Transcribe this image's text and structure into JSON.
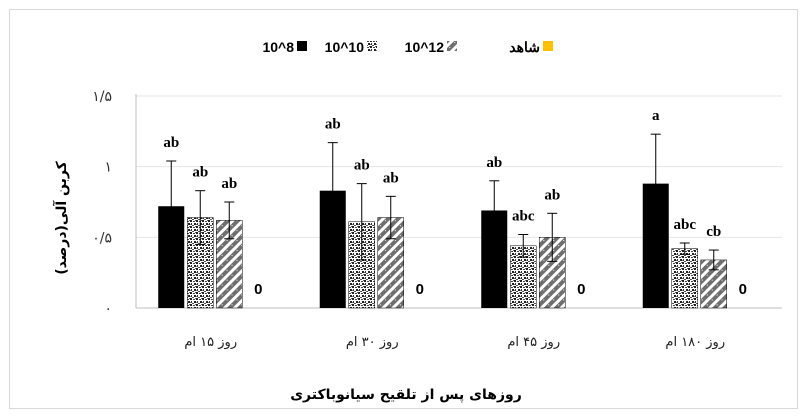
{
  "chart_data": {
    "type": "bar",
    "xlabel": "روزهای پس از تلقیح سیانوباکتری",
    "ylabel": "کربن آلی(درصد)",
    "ylim": [
      0,
      1.5
    ],
    "yticks": [
      "۰",
      "۰/۵",
      "۱",
      "۱/۵"
    ],
    "ytick_values": [
      0,
      0.5,
      1,
      1.5
    ],
    "categories": [
      "روز ۱۵ ام",
      "روز ۳۰ ام",
      "روز ۴۵ ام",
      "روز ۱۸۰ ام"
    ],
    "series": [
      {
        "name": "10^8",
        "color": "#000000",
        "pattern": "solid",
        "values": [
          0.72,
          0.83,
          0.69,
          0.88
        ],
        "errors": [
          0.32,
          0.34,
          0.21,
          0.35
        ],
        "labels": [
          "ab",
          "ab",
          "ab",
          "a"
        ]
      },
      {
        "name": "10^10",
        "color": "#7f7f7f",
        "pattern": "speckle",
        "values": [
          0.64,
          0.61,
          0.44,
          0.42
        ],
        "errors": [
          0.19,
          0.27,
          0.08,
          0.04
        ],
        "labels": [
          "ab",
          "ab",
          "abc",
          "abc"
        ]
      },
      {
        "name": "10^12",
        "color": "#7f7f7f",
        "pattern": "diagonal",
        "values": [
          0.62,
          0.64,
          0.5,
          0.34
        ],
        "errors": [
          0.13,
          0.15,
          0.17,
          0.07
        ],
        "labels": [
          "ab",
          "ab",
          "ab",
          "cb"
        ]
      },
      {
        "name": "شاهد",
        "color": "#ffc000",
        "pattern": "solid",
        "values": [
          0,
          0,
          0,
          0
        ],
        "errors": [
          0,
          0,
          0,
          0
        ],
        "labels": [
          "0",
          "0",
          "0",
          "0"
        ]
      }
    ],
    "legend_position": "top"
  }
}
